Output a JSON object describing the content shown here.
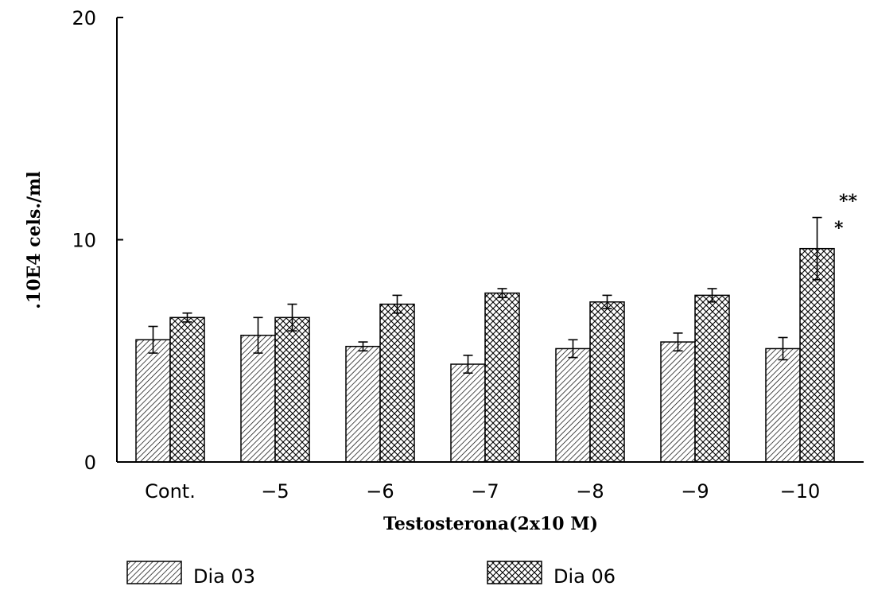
{
  "chart_data": {
    "type": "bar",
    "title": "",
    "xlabel": "Testosterona(2x10 M)",
    "ylabel": ".10E4 cels./ml",
    "ylim": [
      0,
      20
    ],
    "yticks": [
      "0",
      "10",
      "20"
    ],
    "categories": [
      "Cont.",
      "−5",
      "−6",
      "−7",
      "−8",
      "−9",
      "−10"
    ],
    "series": [
      {
        "name": "Dia 03",
        "pattern": "diagonal-hatch",
        "values": [
          5.5,
          5.7,
          5.2,
          4.4,
          5.1,
          5.4,
          5.1
        ],
        "errors": [
          0.6,
          0.8,
          0.2,
          0.4,
          0.4,
          0.4,
          0.5
        ]
      },
      {
        "name": "Dia 06",
        "pattern": "cross-hatch",
        "values": [
          6.5,
          6.5,
          7.1,
          7.6,
          7.2,
          7.5,
          9.6
        ],
        "errors": [
          0.2,
          0.6,
          0.4,
          0.2,
          0.3,
          0.3,
          1.4
        ]
      }
    ],
    "annotations": [
      {
        "category_index": 6,
        "series_index": 1,
        "text": "**"
      },
      {
        "category_index": 6,
        "series_index": 1,
        "text": "*"
      }
    ],
    "legend": {
      "position": "bottom",
      "items": [
        "Dia 03",
        "Dia 06"
      ]
    },
    "grid": false
  }
}
